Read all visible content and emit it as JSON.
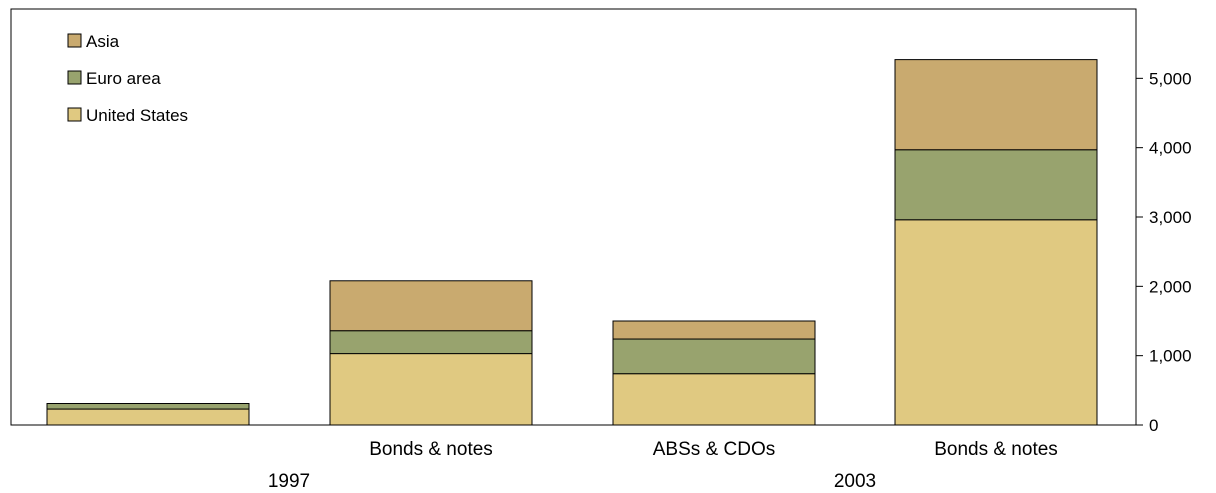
{
  "chart_data": {
    "type": "bar",
    "stacked": true,
    "categories": [
      "",
      "Bonds & notes",
      "ABSs & CDOs",
      "Bonds & notes"
    ],
    "groups": [
      {
        "label": "1997"
      },
      {
        "label": "2003"
      }
    ],
    "series": [
      {
        "name": "United States",
        "color": "#e0c981",
        "values": [
          230,
          1030,
          740,
          2960
        ]
      },
      {
        "name": "Euro area",
        "color": "#98a36e",
        "values": [
          80,
          330,
          500,
          1010
        ]
      },
      {
        "name": "Asia",
        "color": "#c9aa6f",
        "values": [
          0,
          720,
          260,
          1300
        ]
      }
    ],
    "legend_order": [
      "Asia",
      "Euro area",
      "United States"
    ],
    "legend_position": "top-left",
    "ylim": [
      0,
      6000
    ],
    "yticks": [
      0,
      1000,
      2000,
      3000,
      4000,
      5000
    ],
    "ytick_labels": [
      "0",
      "1,000",
      "2,000",
      "3,000",
      "4,000",
      "5,000"
    ],
    "yaxis_side": "right",
    "grid": false,
    "title": "",
    "xlabel": "",
    "ylabel": ""
  }
}
